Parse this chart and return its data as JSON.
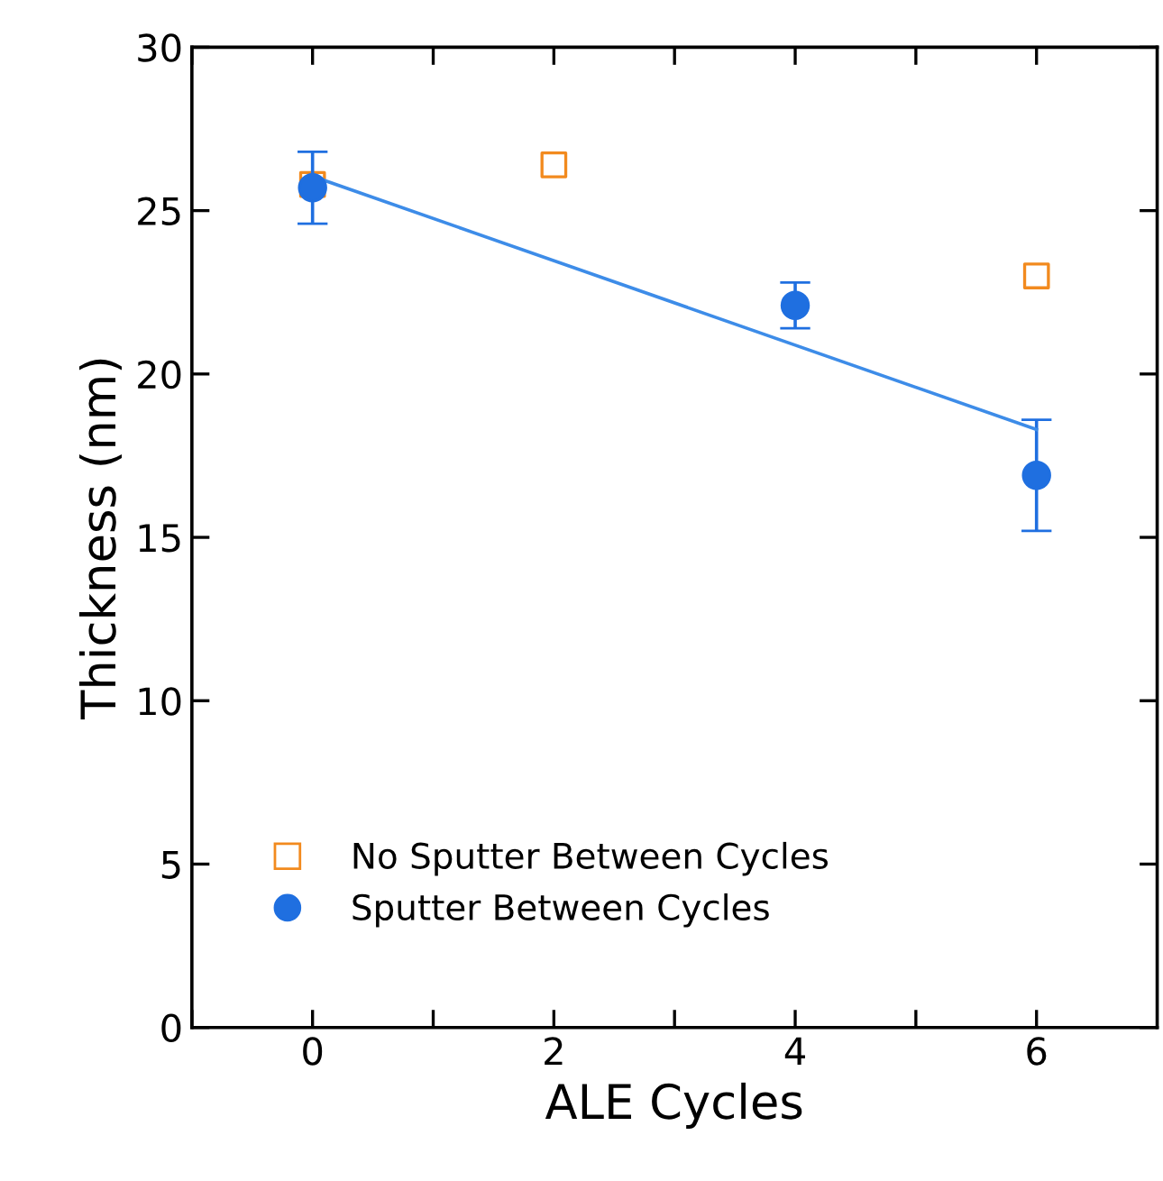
{
  "chart_data": {
    "type": "scatter",
    "xlabel": "ALE Cycles",
    "ylabel": "Thickness (nm)",
    "xlim": [
      -1,
      7
    ],
    "ylim": [
      0,
      30
    ],
    "xticks": [
      {
        "value": -1,
        "label": null
      },
      0,
      {
        "value": 1,
        "label": null
      },
      2,
      {
        "value": 3,
        "label": null
      },
      4,
      {
        "value": 5,
        "label": null
      },
      6
    ],
    "yticks": [
      0,
      5,
      10,
      15,
      20,
      25,
      30
    ],
    "grid": false,
    "legend": "bottom left",
    "series": [
      {
        "name": "No Sputter Between Cycles",
        "color": "#f28a1e",
        "marker": "square",
        "x": [
          0,
          2,
          6
        ],
        "values": [
          25.8,
          26.4,
          23.0
        ]
      },
      {
        "name": "Sputter Between Cycles",
        "color": "#1f6fe0",
        "marker": "circle",
        "x": [
          0,
          4,
          6
        ],
        "values": [
          25.7,
          22.1,
          16.9
        ],
        "errors": [
          1.1,
          0.7,
          1.7
        ]
      },
      {
        "type": "line",
        "color": "#3d8ce8",
        "marker": "none",
        "x": [
          0,
          6
        ],
        "values": [
          26.05,
          18.3
        ]
      }
    ]
  }
}
